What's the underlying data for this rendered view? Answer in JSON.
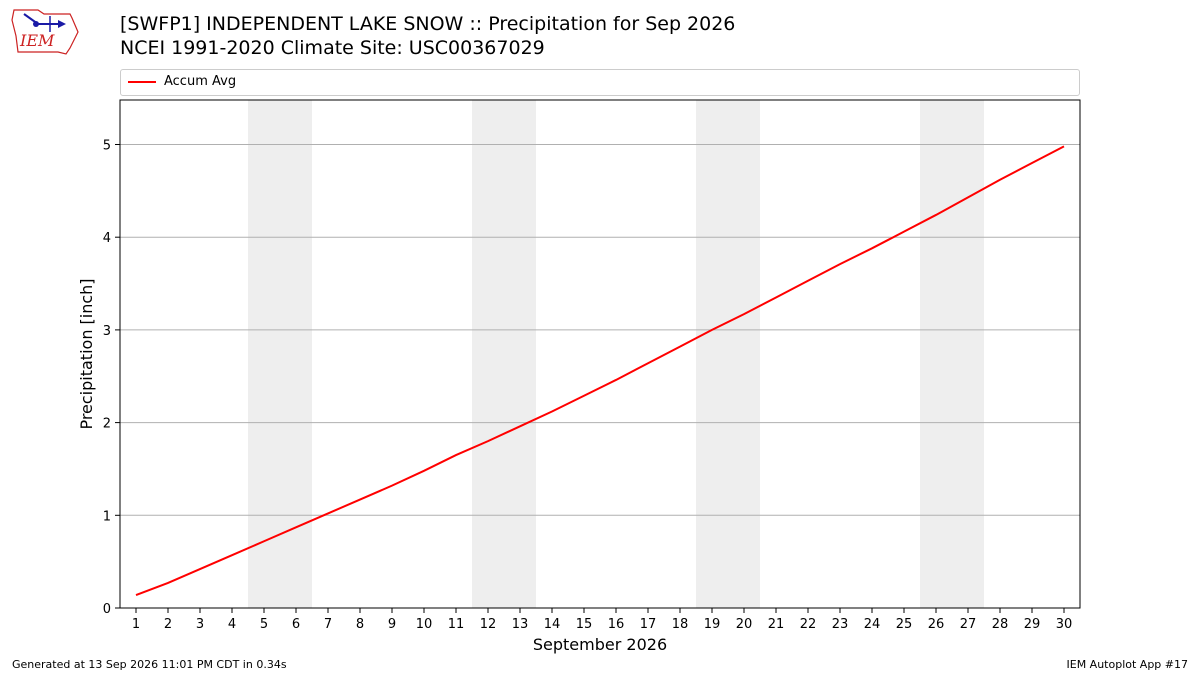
{
  "header": {
    "title_line1": "[SWFP1] INDEPENDENT LAKE SNOW :: Precipitation for Sep 2026",
    "title_line2": "NCEI 1991-2020 Climate Site: USC00367029"
  },
  "logo": {
    "text": "IEM",
    "color": "#cc2222",
    "accent": "#1a1aa6"
  },
  "footer": {
    "left": "Generated at 13 Sep 2026 11:01 PM CDT in 0.34s",
    "right": "IEM Autoplot App #17"
  },
  "chart_data": {
    "type": "line",
    "xlabel": "September 2026",
    "ylabel": "Precipitation [inch]",
    "x": [
      1,
      2,
      3,
      4,
      5,
      6,
      7,
      8,
      9,
      10,
      11,
      12,
      13,
      14,
      15,
      16,
      17,
      18,
      19,
      20,
      21,
      22,
      23,
      24,
      25,
      26,
      27,
      28,
      29,
      30
    ],
    "xlim": [
      0.5,
      30.5
    ],
    "ylim": [
      0,
      5.48
    ],
    "yticks": [
      0,
      1,
      2,
      3,
      4,
      5
    ],
    "grid": "horizontal",
    "legend_position": "top",
    "weekend_bands": [
      [
        4.5,
        6.5
      ],
      [
        11.5,
        13.5
      ],
      [
        18.5,
        20.5
      ],
      [
        25.5,
        27.5
      ]
    ],
    "band_color": "#eeeeee",
    "series": [
      {
        "name": "Accum Avg",
        "color": "#ff0000",
        "values": [
          0.14,
          0.27,
          0.42,
          0.57,
          0.72,
          0.87,
          1.02,
          1.17,
          1.32,
          1.48,
          1.65,
          1.8,
          1.96,
          2.12,
          2.29,
          2.46,
          2.64,
          2.82,
          3.0,
          3.17,
          3.35,
          3.53,
          3.71,
          3.88,
          4.06,
          4.24,
          4.43,
          4.62,
          4.8,
          4.98
        ]
      }
    ]
  }
}
